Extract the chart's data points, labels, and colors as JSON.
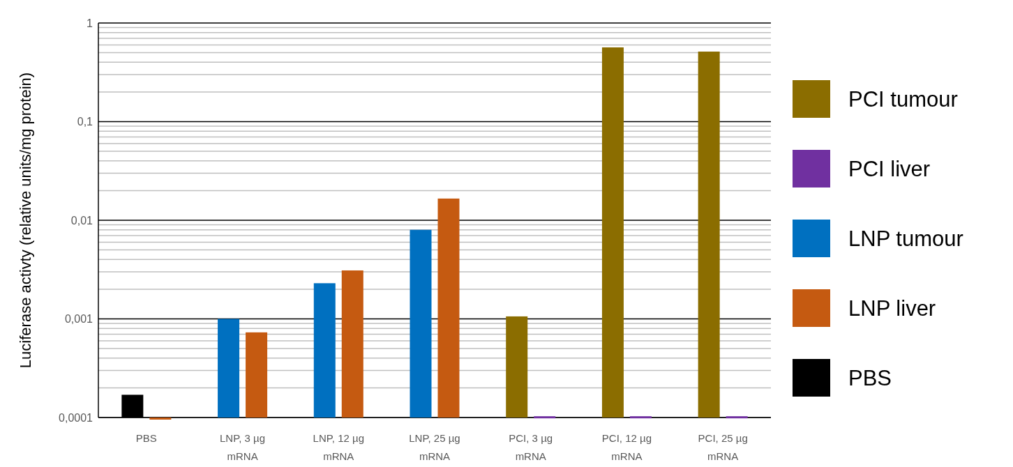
{
  "chart_data": {
    "type": "bar",
    "ylabel": "Luciferase activty (relative units/mg protein)",
    "categories": [
      "PBS",
      "LNP, 3 µg mRNA",
      "LNP, 12 µg mRNA",
      "LNP, 25 µg mRNA",
      "PCI, 3 µg mRNA",
      "PCI, 12 µg mRNA",
      "PCI, 25 µg mRNA"
    ],
    "series": [
      {
        "name": "PBS",
        "color": "#000000",
        "values": [
          0.00017,
          null,
          null,
          null,
          null,
          null,
          null
        ]
      },
      {
        "name": "PCI tumour",
        "color": "#8b6d00",
        "values": [
          null,
          null,
          null,
          null,
          0.00106,
          0.566,
          0.513
        ]
      },
      {
        "name": "PCI liver",
        "color": "#7030a0",
        "values": [
          null,
          null,
          null,
          null,
          0.000103,
          0.000103,
          0.000103
        ]
      },
      {
        "name": "LNP tumour",
        "color": "#0070c0",
        "values": [
          null,
          0.001,
          0.0023,
          0.008,
          null,
          null,
          null
        ]
      },
      {
        "name": "LNP liver",
        "color": "#c55a11",
        "values": [
          0.0001,
          0.00073,
          0.0031,
          0.0166,
          null,
          null,
          null
        ]
      }
    ],
    "log": true,
    "ylim": [
      0.0001,
      1
    ],
    "yticks": [
      {
        "value": 0.0001,
        "label": "0,0001"
      },
      {
        "value": 0.001,
        "label": "0,001"
      },
      {
        "value": 0.01,
        "label": "0,01"
      },
      {
        "value": 0.1,
        "label": "0,1"
      },
      {
        "value": 1,
        "label": "1"
      }
    ],
    "grid": "y",
    "legend": "right"
  }
}
